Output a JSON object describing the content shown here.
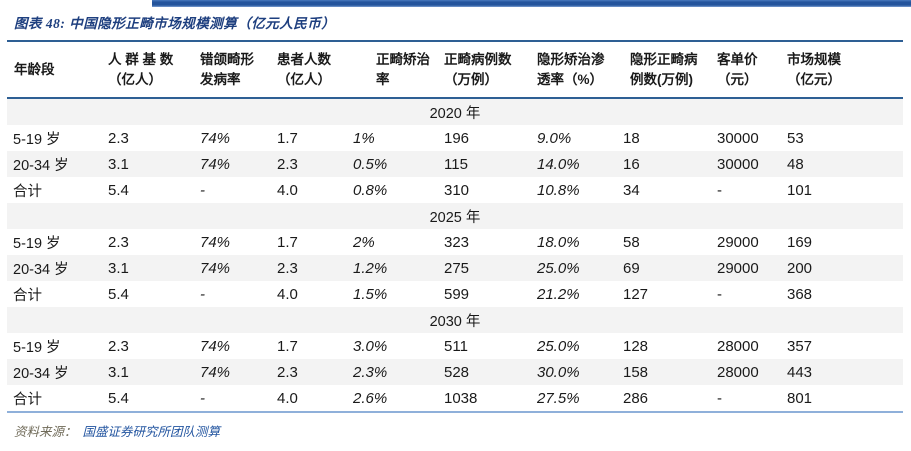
{
  "colors": {
    "top_bar_navy": "#24549C",
    "title_blue": "#1E3F7F",
    "table_border_dark": "#2E5F94",
    "table_border_light": "#8FB0DA",
    "row_alternate_gray": "#F3F3F3",
    "source_label_brown": "#6F6A58",
    "source_text_blue": "#2355A0"
  },
  "title": "图表 48:  中国隐形正畸市场规模测算（亿元人民币）",
  "table": {
    "columns": [
      {
        "line1": "年龄段",
        "line2": ""
      },
      {
        "line1": "人 群 基 数",
        "line2": "（亿人）"
      },
      {
        "line1": "错颌畸形",
        "line2": "发病率"
      },
      {
        "line1": "患者人数",
        "line2": "（亿人）"
      },
      {
        "line1": "正畸矫治率",
        "line2": ""
      },
      {
        "line1": "正畸病例数",
        "line2": "（万例）"
      },
      {
        "line1": "隐形矫治渗",
        "line2": "透率（%）"
      },
      {
        "line1": "隐形正畸病",
        "line2": "例数(万例)"
      },
      {
        "line1": "客单价",
        "line2": "（元）"
      },
      {
        "line1": "市场规模",
        "line2": "（亿元）"
      }
    ],
    "italic_value_columns": [
      2,
      4,
      6
    ],
    "sections": [
      {
        "year": "2020 年",
        "rows": [
          {
            "cells": [
              "5-19 岁",
              "2.3",
              "74%",
              "1.7",
              "1%",
              "196",
              "9.0%",
              "18",
              "30000",
              "53"
            ]
          },
          {
            "cells": [
              "20-34 岁",
              "3.1",
              "74%",
              "2.3",
              "0.5%",
              "115",
              "14.0%",
              "16",
              "30000",
              "48"
            ]
          },
          {
            "cells": [
              "合计",
              "5.4",
              "-",
              "4.0",
              "0.8%",
              "310",
              "10.8%",
              "34",
              "-",
              "101"
            ]
          }
        ]
      },
      {
        "year": "2025 年",
        "rows": [
          {
            "cells": [
              "5-19 岁",
              "2.3",
              "74%",
              "1.7",
              "2%",
              "323",
              "18.0%",
              "58",
              "29000",
              "169"
            ]
          },
          {
            "cells": [
              "20-34 岁",
              "3.1",
              "74%",
              "2.3",
              "1.2%",
              "275",
              "25.0%",
              "69",
              "29000",
              "200"
            ]
          },
          {
            "cells": [
              "合计",
              "5.4",
              "-",
              "4.0",
              "1.5%",
              "599",
              "21.2%",
              "127",
              "-",
              "368"
            ]
          }
        ]
      },
      {
        "year": "2030 年",
        "rows": [
          {
            "cells": [
              "5-19 岁",
              "2.3",
              "74%",
              "1.7",
              "3.0%",
              "511",
              "25.0%",
              "128",
              "28000",
              "357"
            ]
          },
          {
            "cells": [
              "20-34 岁",
              "3.1",
              "74%",
              "2.3",
              "2.3%",
              "528",
              "30.0%",
              "158",
              "28000",
              "443"
            ]
          },
          {
            "cells": [
              "合计",
              "5.4",
              "-",
              "4.0",
              "2.6%",
              "1038",
              "27.5%",
              "286",
              "-",
              "801"
            ]
          }
        ]
      }
    ]
  },
  "source": {
    "label": "资料来源：",
    "text": "国盛证券研究所团队测算"
  }
}
